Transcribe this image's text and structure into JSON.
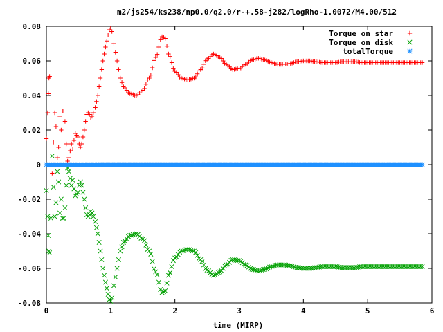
{
  "chart_data": {
    "type": "scatter",
    "title": "m2/js254/ks238/np0.0/q2.0/r-+.58-j282/logRho-1.0072/M4.00/512",
    "xlabel": "time (MIRP)",
    "ylabel": "",
    "xlim": [
      0,
      6
    ],
    "ylim": [
      -0.08,
      0.08
    ],
    "xticks": [
      "0",
      "1",
      "2",
      "3",
      "4",
      "5",
      "6"
    ],
    "yticks": [
      "-0.08",
      "-0.06",
      "-0.04",
      "-0.02",
      "0",
      "0.02",
      "0.04",
      "0.06",
      "0.08"
    ],
    "legend_position": "top-right",
    "grid": false,
    "series": [
      {
        "name": "Torque on star",
        "marker": "plus",
        "color": "#ff0000",
        "points": [
          [
            0.0,
            0.015
          ],
          [
            0.02,
            0.03
          ],
          [
            0.03,
            0.041
          ],
          [
            0.04,
            0.05
          ],
          [
            0.05,
            0.051
          ],
          [
            0.07,
            0.031
          ],
          [
            0.09,
            -0.005
          ],
          [
            0.11,
            0.013
          ],
          [
            0.13,
            0.03
          ],
          [
            0.15,
            0.022
          ],
          [
            0.17,
            0.004
          ],
          [
            0.19,
            0.01
          ],
          [
            0.21,
            0.028
          ],
          [
            0.23,
            0.02
          ],
          [
            0.25,
            0.031
          ],
          [
            0.27,
            0.031
          ],
          [
            0.29,
            0.025
          ],
          [
            0.31,
            0.012
          ],
          [
            0.33,
            0.002
          ],
          [
            0.35,
            0.004
          ],
          [
            0.37,
            0.008
          ],
          [
            0.39,
            0.012
          ],
          [
            0.41,
            0.009
          ],
          [
            0.43,
            0.014
          ],
          [
            0.45,
            0.018
          ],
          [
            0.47,
            0.017
          ],
          [
            0.49,
            0.016
          ],
          [
            0.51,
            0.012
          ],
          [
            0.53,
            0.01
          ],
          [
            0.55,
            0.012
          ],
          [
            0.57,
            0.016
          ],
          [
            0.59,
            0.02
          ],
          [
            0.61,
            0.025
          ],
          [
            0.63,
            0.029
          ],
          [
            0.65,
            0.03
          ],
          [
            0.67,
            0.029
          ],
          [
            0.69,
            0.027
          ],
          [
            0.71,
            0.028
          ],
          [
            0.73,
            0.03
          ],
          [
            0.76,
            0.033
          ],
          [
            0.8,
            0.04
          ],
          [
            0.84,
            0.05
          ],
          [
            0.88,
            0.06
          ],
          [
            0.92,
            0.068
          ],
          [
            0.96,
            0.075
          ],
          [
            0.98,
            0.078
          ],
          [
            1.0,
            0.079
          ],
          [
            1.02,
            0.077
          ],
          [
            1.05,
            0.07
          ],
          [
            1.1,
            0.06
          ],
          [
            1.15,
            0.05
          ],
          [
            1.2,
            0.045
          ],
          [
            1.3,
            0.041
          ],
          [
            1.4,
            0.04
          ],
          [
            1.5,
            0.043
          ],
          [
            1.6,
            0.05
          ],
          [
            1.7,
            0.062
          ],
          [
            1.8,
            0.074
          ],
          [
            1.85,
            0.073
          ],
          [
            1.9,
            0.064
          ],
          [
            2.0,
            0.054
          ],
          [
            2.1,
            0.05
          ],
          [
            2.2,
            0.049
          ],
          [
            2.3,
            0.05
          ],
          [
            2.4,
            0.055
          ],
          [
            2.5,
            0.061
          ],
          [
            2.6,
            0.064
          ],
          [
            2.7,
            0.062
          ],
          [
            2.8,
            0.058
          ],
          [
            2.9,
            0.055
          ],
          [
            3.0,
            0.0555
          ],
          [
            3.1,
            0.058
          ],
          [
            3.2,
            0.0605
          ],
          [
            3.3,
            0.0615
          ],
          [
            3.4,
            0.0605
          ],
          [
            3.5,
            0.059
          ],
          [
            3.6,
            0.058
          ],
          [
            3.7,
            0.058
          ],
          [
            3.8,
            0.0585
          ],
          [
            3.9,
            0.0595
          ],
          [
            4.0,
            0.06
          ],
          [
            4.1,
            0.06
          ],
          [
            4.2,
            0.0595
          ],
          [
            4.3,
            0.059
          ],
          [
            4.4,
            0.059
          ],
          [
            4.5,
            0.059
          ],
          [
            4.6,
            0.0595
          ],
          [
            4.7,
            0.0595
          ],
          [
            4.8,
            0.0595
          ],
          [
            4.9,
            0.059
          ],
          [
            5.0,
            0.059
          ],
          [
            5.1,
            0.059
          ],
          [
            5.2,
            0.059
          ],
          [
            5.3,
            0.059
          ],
          [
            5.4,
            0.059
          ],
          [
            5.5,
            0.059
          ],
          [
            5.6,
            0.059
          ],
          [
            5.7,
            0.059
          ],
          [
            5.8,
            0.059
          ],
          [
            5.85,
            0.059
          ]
        ]
      },
      {
        "name": "Torque on disk",
        "marker": "cross",
        "color": "#00a000",
        "points": [
          [
            0.0,
            -0.015
          ],
          [
            0.02,
            -0.03
          ],
          [
            0.03,
            -0.041
          ],
          [
            0.04,
            -0.05
          ],
          [
            0.05,
            -0.051
          ],
          [
            0.07,
            -0.031
          ],
          [
            0.09,
            0.005
          ],
          [
            0.11,
            -0.013
          ],
          [
            0.13,
            -0.03
          ],
          [
            0.15,
            -0.022
          ],
          [
            0.17,
            -0.004
          ],
          [
            0.19,
            -0.01
          ],
          [
            0.21,
            -0.028
          ],
          [
            0.23,
            -0.02
          ],
          [
            0.25,
            -0.031
          ],
          [
            0.27,
            -0.031
          ],
          [
            0.29,
            -0.025
          ],
          [
            0.31,
            -0.012
          ],
          [
            0.33,
            -0.002
          ],
          [
            0.35,
            -0.004
          ],
          [
            0.37,
            -0.008
          ],
          [
            0.39,
            -0.012
          ],
          [
            0.41,
            -0.009
          ],
          [
            0.43,
            -0.014
          ],
          [
            0.45,
            -0.018
          ],
          [
            0.47,
            -0.017
          ],
          [
            0.49,
            -0.016
          ],
          [
            0.51,
            -0.012
          ],
          [
            0.53,
            -0.01
          ],
          [
            0.55,
            -0.012
          ],
          [
            0.57,
            -0.016
          ],
          [
            0.59,
            -0.02
          ],
          [
            0.61,
            -0.025
          ],
          [
            0.63,
            -0.029
          ],
          [
            0.65,
            -0.03
          ],
          [
            0.67,
            -0.029
          ],
          [
            0.69,
            -0.027
          ],
          [
            0.71,
            -0.028
          ],
          [
            0.73,
            -0.03
          ],
          [
            0.76,
            -0.033
          ],
          [
            0.8,
            -0.04
          ],
          [
            0.84,
            -0.05
          ],
          [
            0.88,
            -0.06
          ],
          [
            0.92,
            -0.068
          ],
          [
            0.96,
            -0.075
          ],
          [
            0.98,
            -0.078
          ],
          [
            1.0,
            -0.079
          ],
          [
            1.02,
            -0.077
          ],
          [
            1.05,
            -0.07
          ],
          [
            1.1,
            -0.06
          ],
          [
            1.15,
            -0.05
          ],
          [
            1.2,
            -0.045
          ],
          [
            1.3,
            -0.041
          ],
          [
            1.4,
            -0.04
          ],
          [
            1.5,
            -0.043
          ],
          [
            1.6,
            -0.05
          ],
          [
            1.7,
            -0.062
          ],
          [
            1.8,
            -0.074
          ],
          [
            1.85,
            -0.073
          ],
          [
            1.9,
            -0.064
          ],
          [
            2.0,
            -0.054
          ],
          [
            2.1,
            -0.05
          ],
          [
            2.2,
            -0.049
          ],
          [
            2.3,
            -0.05
          ],
          [
            2.4,
            -0.055
          ],
          [
            2.5,
            -0.061
          ],
          [
            2.6,
            -0.064
          ],
          [
            2.7,
            -0.062
          ],
          [
            2.8,
            -0.058
          ],
          [
            2.9,
            -0.055
          ],
          [
            3.0,
            -0.0555
          ],
          [
            3.1,
            -0.058
          ],
          [
            3.2,
            -0.0605
          ],
          [
            3.3,
            -0.0615
          ],
          [
            3.4,
            -0.0605
          ],
          [
            3.5,
            -0.059
          ],
          [
            3.6,
            -0.058
          ],
          [
            3.7,
            -0.058
          ],
          [
            3.8,
            -0.0585
          ],
          [
            3.9,
            -0.0595
          ],
          [
            4.0,
            -0.06
          ],
          [
            4.1,
            -0.06
          ],
          [
            4.2,
            -0.0595
          ],
          [
            4.3,
            -0.059
          ],
          [
            4.4,
            -0.059
          ],
          [
            4.5,
            -0.059
          ],
          [
            4.6,
            -0.0595
          ],
          [
            4.7,
            -0.0595
          ],
          [
            4.8,
            -0.0595
          ],
          [
            4.9,
            -0.059
          ],
          [
            5.0,
            -0.059
          ],
          [
            5.1,
            -0.059
          ],
          [
            5.2,
            -0.059
          ],
          [
            5.3,
            -0.059
          ],
          [
            5.4,
            -0.059
          ],
          [
            5.5,
            -0.059
          ],
          [
            5.6,
            -0.059
          ],
          [
            5.7,
            -0.059
          ],
          [
            5.8,
            -0.059
          ],
          [
            5.85,
            -0.059
          ]
        ]
      },
      {
        "name": "totalTorque",
        "marker": "star",
        "color": "#1e90ff",
        "x_range": [
          0,
          5.85
        ],
        "constant_y": 0,
        "count": 120
      }
    ]
  }
}
